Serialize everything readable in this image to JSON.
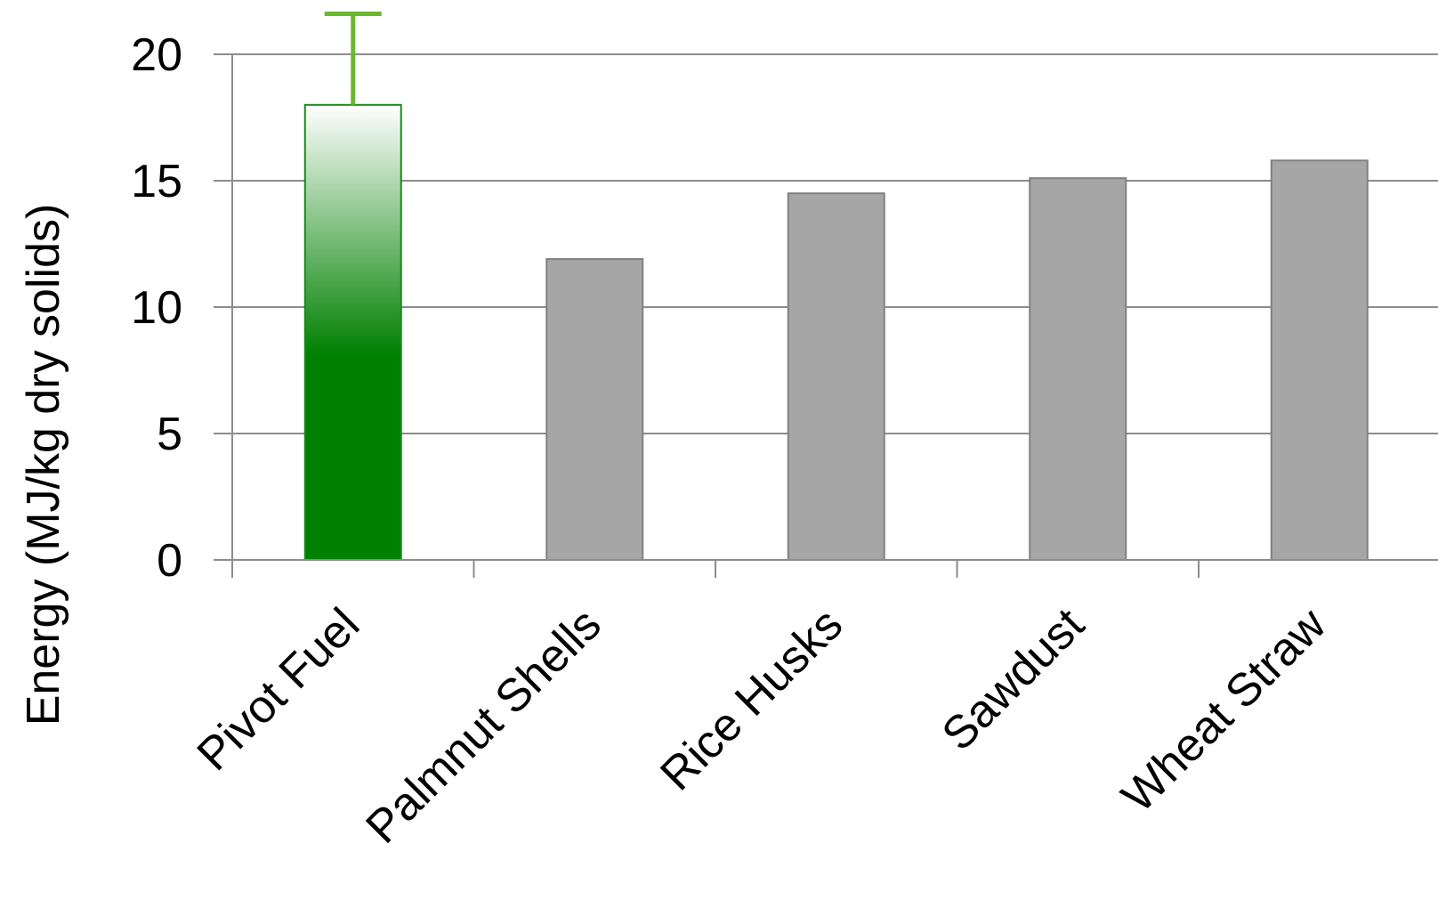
{
  "chart_data": {
    "type": "bar",
    "title": "",
    "xlabel": "",
    "ylabel": "Energy (MJ/kg dry solids)",
    "ylim": [
      0,
      20
    ],
    "yticks": [
      "0",
      "5",
      "10",
      "15",
      "20"
    ],
    "ytick_values": [
      0,
      5,
      10,
      15,
      20
    ],
    "grid": true,
    "categories": [
      "Pivot Fuel",
      "Palmnut Shells",
      "Rice Husks",
      "Sawdust",
      "Wheat Straw"
    ],
    "values": [
      18.0,
      11.9,
      14.5,
      15.1,
      15.8
    ],
    "error_bars": [
      3.6,
      null,
      null,
      null,
      null
    ],
    "colors": {
      "highlight_bar": "#008000",
      "highlight_border": "#1a8a1a",
      "error_bar": "#6ab82e",
      "other_bars": "#a6a6a6",
      "other_border": "#808080"
    }
  }
}
